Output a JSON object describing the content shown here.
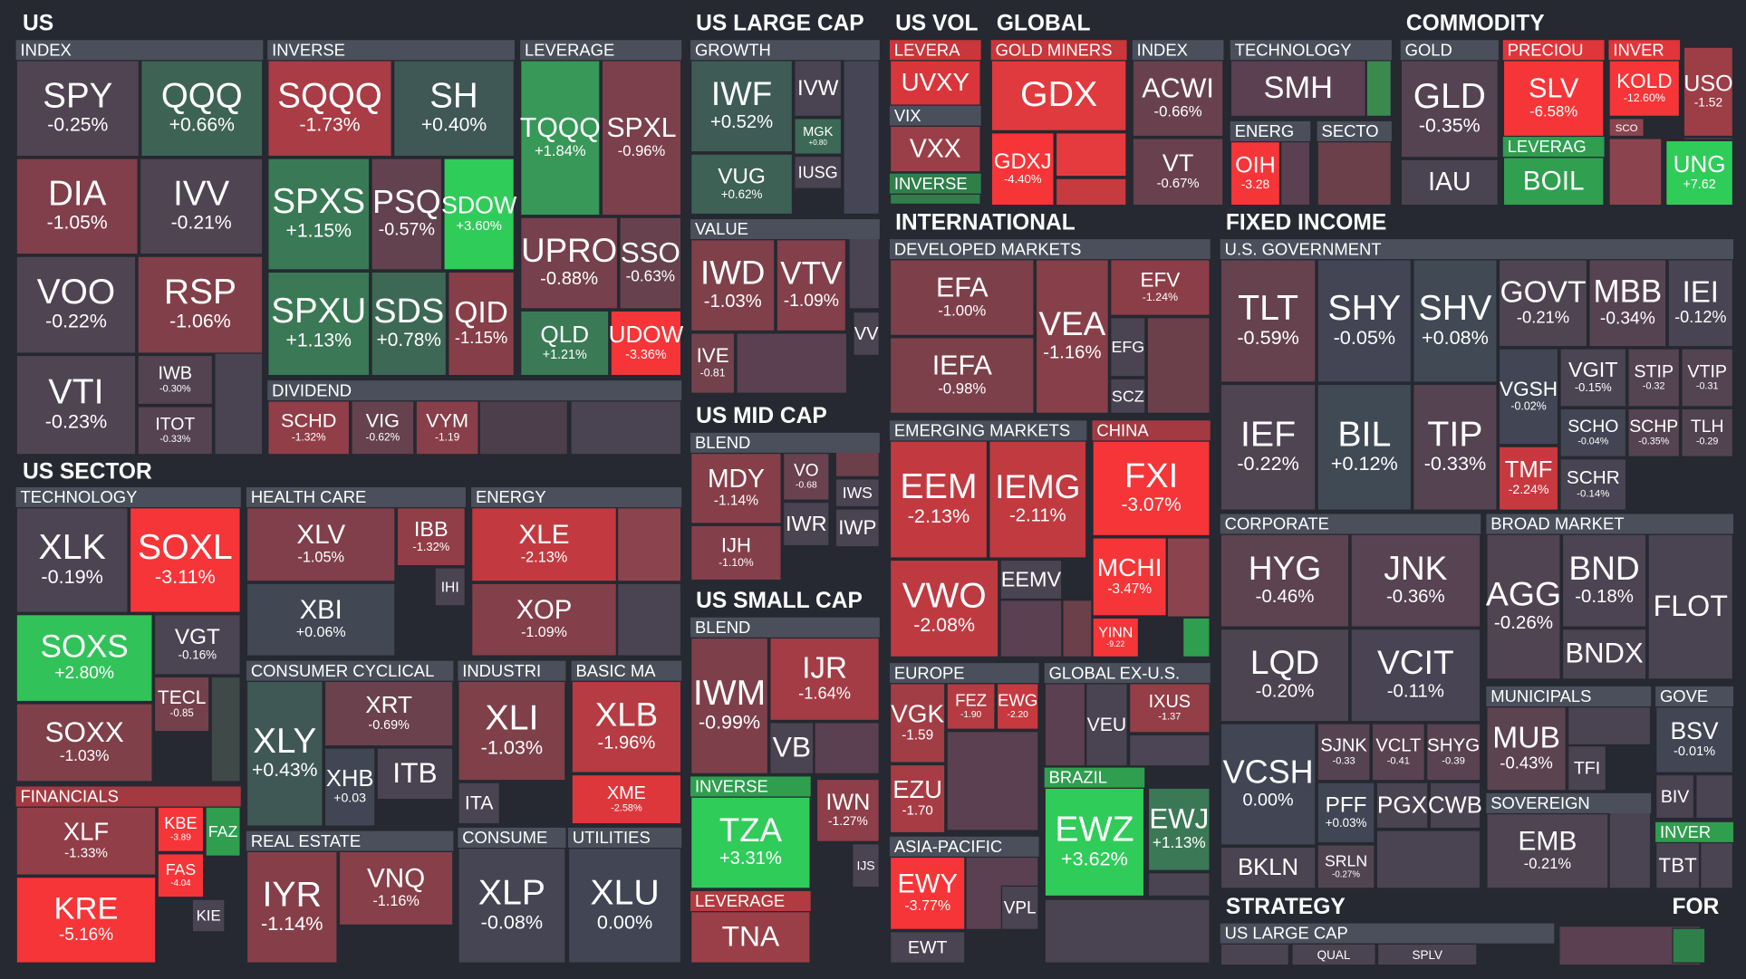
{
  "sections": [
    {
      "title": "US",
      "groups": [
        {
          "label": "INDEX",
          "tiles": [
            {
              "ticker": "SPY",
              "change": "-0.25%"
            },
            {
              "ticker": "QQQ",
              "change": "+0.66%"
            },
            {
              "ticker": "DIA",
              "change": "-1.05%"
            },
            {
              "ticker": "IVV",
              "change": "-0.21%"
            },
            {
              "ticker": "VOO",
              "change": "-0.22%"
            },
            {
              "ticker": "RSP",
              "change": "-1.06%"
            },
            {
              "ticker": "VTI",
              "change": "-0.23%"
            },
            {
              "ticker": "IWB",
              "change": "-0.30%"
            },
            {
              "ticker": "ITOT",
              "change": "-0.33%"
            }
          ]
        },
        {
          "label": "INVERSE",
          "tiles": [
            {
              "ticker": "SQQQ",
              "change": "-1.73%"
            },
            {
              "ticker": "SH",
              "change": "+0.40%"
            },
            {
              "ticker": "SPXS",
              "change": "+1.15%"
            },
            {
              "ticker": "PSQ",
              "change": "-0.57%"
            },
            {
              "ticker": "SDOW",
              "change": "+3.60%"
            },
            {
              "ticker": "SPXU",
              "change": "+1.13%"
            },
            {
              "ticker": "SDS",
              "change": "+0.78%"
            },
            {
              "ticker": "QID",
              "change": "-1.15%"
            }
          ]
        },
        {
          "label": "LEVERAGE",
          "tiles": [
            {
              "ticker": "TQQQ",
              "change": "+1.84%"
            },
            {
              "ticker": "SPXL",
              "change": "-0.96%"
            },
            {
              "ticker": "UPRO",
              "change": "-0.88%"
            },
            {
              "ticker": "SSO",
              "change": "-0.63%"
            },
            {
              "ticker": "QLD",
              "change": "+1.21%"
            },
            {
              "ticker": "UDOW",
              "change": "-3.36%"
            }
          ]
        },
        {
          "label": "DIVIDEND",
          "tiles": [
            {
              "ticker": "SCHD",
              "change": "-1.32%"
            },
            {
              "ticker": "VIG",
              "change": "-0.62%"
            },
            {
              "ticker": "VYM",
              "change": "-1.19"
            }
          ]
        }
      ]
    },
    {
      "title": "US SECTOR",
      "groups": [
        {
          "label": "TECHNOLOGY",
          "tiles": [
            {
              "ticker": "XLK",
              "change": "-0.19%"
            },
            {
              "ticker": "SOXL",
              "change": "-3.11%"
            },
            {
              "ticker": "SOXS",
              "change": "+2.80%"
            },
            {
              "ticker": "VGT",
              "change": "-0.16%"
            },
            {
              "ticker": "SOXX",
              "change": "-1.03%"
            },
            {
              "ticker": "TECL",
              "change": "-0.85"
            }
          ]
        },
        {
          "label": "FINANCIALS",
          "tiles": [
            {
              "ticker": "XLF",
              "change": "-1.33%"
            },
            {
              "ticker": "KBE",
              "change": "-3.89"
            },
            {
              "ticker": "FAZ"
            },
            {
              "ticker": "FAS",
              "change": "-4.04"
            },
            {
              "ticker": "KIE"
            },
            {
              "ticker": "KRE",
              "change": "-5.16%"
            }
          ]
        },
        {
          "label": "HEALTH CARE",
          "tiles": [
            {
              "ticker": "XLV",
              "change": "-1.05%"
            },
            {
              "ticker": "IBB",
              "change": "-1.32%"
            },
            {
              "ticker": "IHI"
            },
            {
              "ticker": "XBI",
              "change": "+0.06%"
            }
          ]
        },
        {
          "label": "ENERGY",
          "tiles": [
            {
              "ticker": "XLE",
              "change": "-2.13%"
            },
            {
              "ticker": "XOP",
              "change": "-1.09%"
            }
          ]
        },
        {
          "label": "CONSUMER CYCLICAL",
          "tiles": [
            {
              "ticker": "XRT",
              "change": "-0.69%"
            },
            {
              "ticker": "XLY",
              "change": "+0.43%"
            },
            {
              "ticker": "XHB",
              "change": "+0.03"
            },
            {
              "ticker": "ITB"
            }
          ]
        },
        {
          "label": "INDUSTRI",
          "tiles": [
            {
              "ticker": "XLI",
              "change": "-1.03%"
            },
            {
              "ticker": "ITA"
            }
          ]
        },
        {
          "label": "BASIC MA",
          "tiles": [
            {
              "ticker": "XLB",
              "change": "-1.96%"
            },
            {
              "ticker": "XME",
              "change": "-2.58%"
            }
          ]
        },
        {
          "label": "REAL ESTATE",
          "tiles": [
            {
              "ticker": "IYR",
              "change": "-1.14%"
            },
            {
              "ticker": "VNQ",
              "change": "-1.16%"
            }
          ]
        },
        {
          "label": "CONSUME",
          "tiles": [
            {
              "ticker": "XLP",
              "change": "-0.08%"
            }
          ]
        },
        {
          "label": "UTILITIES",
          "tiles": [
            {
              "ticker": "XLU",
              "change": "0.00%"
            }
          ]
        }
      ]
    },
    {
      "title": "US LARGE CAP",
      "groups": [
        {
          "label": "GROWTH",
          "tiles": [
            {
              "ticker": "IWF",
              "change": "+0.52%"
            },
            {
              "ticker": "IVW"
            },
            {
              "ticker": "MGK",
              "change": "+0.80"
            },
            {
              "ticker": "IUSG"
            },
            {
              "ticker": "VUG",
              "change": "+0.62%"
            }
          ]
        },
        {
          "label": "VALUE",
          "tiles": [
            {
              "ticker": "IWD",
              "change": "-1.03%"
            },
            {
              "ticker": "VTV",
              "change": "-1.09%"
            },
            {
              "ticker": "IVE",
              "change": "-0.81"
            },
            {
              "ticker": "VV"
            }
          ]
        }
      ]
    },
    {
      "title": "US MID CAP",
      "groups": [
        {
          "label": "BLEND",
          "tiles": [
            {
              "ticker": "MDY",
              "change": "-1.14%"
            },
            {
              "ticker": "VO",
              "change": "-0.68"
            },
            {
              "ticker": "IWR"
            },
            {
              "ticker": "IWS"
            },
            {
              "ticker": "IWP"
            },
            {
              "ticker": "IJH",
              "change": "-1.10%"
            }
          ]
        }
      ]
    },
    {
      "title": "US SMALL CAP",
      "groups": [
        {
          "label": "BLEND",
          "tiles": [
            {
              "ticker": "IWM",
              "change": "-0.99%"
            },
            {
              "ticker": "IJR",
              "change": "-1.64%"
            },
            {
              "ticker": "VB"
            },
            {
              "ticker": "IWN",
              "change": "-1.27%"
            },
            {
              "ticker": "IJS"
            }
          ]
        },
        {
          "label": "INVERSE",
          "tiles": [
            {
              "ticker": "TZA",
              "change": "+3.31%"
            }
          ]
        },
        {
          "label": "LEVERAGE",
          "tiles": [
            {
              "ticker": "TNA"
            }
          ]
        }
      ]
    },
    {
      "title": "US VOL",
      "groups": [
        {
          "label": "LEVERA",
          "tiles": [
            {
              "ticker": "UVXY"
            }
          ]
        },
        {
          "label": "VIX",
          "tiles": [
            {
              "ticker": "VXX"
            }
          ]
        },
        {
          "label": "INVERSE",
          "tiles": []
        }
      ]
    },
    {
      "title": "GLOBAL",
      "groups": [
        {
          "label": "GOLD MINERS",
          "tiles": [
            {
              "ticker": "GDX"
            },
            {
              "ticker": "GDXJ",
              "change": "-4.40%"
            }
          ]
        },
        {
          "label": "INDEX",
          "tiles": [
            {
              "ticker": "ACWI",
              "change": "-0.66%"
            },
            {
              "ticker": "VT",
              "change": "-0.67%"
            }
          ]
        },
        {
          "label": "TECHNOLOGY",
          "tiles": [
            {
              "ticker": "SMH"
            }
          ]
        },
        {
          "label": "ENERG",
          "tiles": [
            {
              "ticker": "OIH",
              "change": "-3.28"
            }
          ]
        },
        {
          "label": "SECTO",
          "tiles": []
        }
      ]
    },
    {
      "title": "COMMODITY",
      "groups": [
        {
          "label": "GOLD",
          "tiles": [
            {
              "ticker": "GLD",
              "change": "-0.35%"
            },
            {
              "ticker": "IAU"
            }
          ]
        },
        {
          "label": "PRECIOU",
          "tiles": [
            {
              "ticker": "SLV",
              "change": "-6.58%"
            }
          ]
        },
        {
          "label": "INVER",
          "tiles": [
            {
              "ticker": "KOLD",
              "change": "-12.60%"
            },
            {
              "ticker": "SCO"
            },
            {
              "ticker": "USO",
              "change": "-1.52"
            }
          ]
        },
        {
          "label": "LEVERAG",
          "tiles": [
            {
              "ticker": "BOIL"
            },
            {
              "ticker": "UNG",
              "change": "+7.62"
            }
          ]
        }
      ]
    },
    {
      "title": "INTERNATIONAL",
      "groups": [
        {
          "label": "DEVELOPED MARKETS",
          "tiles": [
            {
              "ticker": "EFA",
              "change": "-1.00%"
            },
            {
              "ticker": "IEFA",
              "change": "-0.98%"
            },
            {
              "ticker": "VEA",
              "change": "-1.16%"
            },
            {
              "ticker": "EFV",
              "change": "-1.24%"
            },
            {
              "ticker": "EFG"
            },
            {
              "ticker": "SCZ"
            }
          ]
        },
        {
          "label": "EMERGING MARKETS",
          "tiles": [
            {
              "ticker": "EEM",
              "change": "-2.13%"
            },
            {
              "ticker": "IEMG",
              "change": "-2.11%"
            },
            {
              "ticker": "VWO",
              "change": "-2.08%"
            },
            {
              "ticker": "EEMV"
            }
          ]
        },
        {
          "label": "CHINA",
          "tiles": [
            {
              "ticker": "FXI",
              "change": "-3.07%"
            },
            {
              "ticker": "MCHI",
              "change": "-3.47%"
            },
            {
              "ticker": "YINN",
              "change": "-9.22"
            }
          ]
        },
        {
          "label": "EUROPE",
          "tiles": [
            {
              "ticker": "VGK",
              "change": "-1.59"
            },
            {
              "ticker": "FEZ",
              "change": "-1.90"
            },
            {
              "ticker": "EWG",
              "change": "-2.20"
            },
            {
              "ticker": "EZU",
              "change": "-1.70"
            }
          ]
        },
        {
          "label": "GLOBAL EX-U.S.",
          "tiles": [
            {
              "ticker": "VEU"
            },
            {
              "ticker": "IXUS",
              "change": "-1.37"
            },
            {
              "ticker": "EWJ",
              "change": "+1.13%"
            }
          ]
        },
        {
          "label": "BRAZIL",
          "tiles": [
            {
              "ticker": "EWZ",
              "change": "+3.62%"
            }
          ]
        },
        {
          "label": "ASIA-PACIFIC",
          "tiles": [
            {
              "ticker": "EWY",
              "change": "-3.77%"
            },
            {
              "ticker": "VPL"
            },
            {
              "ticker": "EWT"
            }
          ]
        }
      ]
    },
    {
      "title": "FIXED INCOME",
      "groups": [
        {
          "label": "U.S. GOVERNMENT",
          "tiles": [
            {
              "ticker": "TLT",
              "change": "-0.59%"
            },
            {
              "ticker": "SHY",
              "change": "-0.05%"
            },
            {
              "ticker": "SHV",
              "change": "+0.08%"
            },
            {
              "ticker": "GOVT",
              "change": "-0.21%"
            },
            {
              "ticker": "MBB",
              "change": "-0.34%"
            },
            {
              "ticker": "IEI",
              "change": "-0.12%"
            },
            {
              "ticker": "IEF",
              "change": "-0.22%"
            },
            {
              "ticker": "BIL",
              "change": "+0.12%"
            },
            {
              "ticker": "TIP",
              "change": "-0.33%"
            },
            {
              "ticker": "VGSH",
              "change": "-0.02%"
            },
            {
              "ticker": "VGIT",
              "change": "-0.15%"
            },
            {
              "ticker": "STIP",
              "change": "-0.32"
            },
            {
              "ticker": "VTIP",
              "change": "-0.31"
            },
            {
              "ticker": "SCHO",
              "change": "-0.04%"
            },
            {
              "ticker": "SCHP",
              "change": "-0.35%"
            },
            {
              "ticker": "TLH",
              "change": "-0.29"
            },
            {
              "ticker": "TMF",
              "change": "-2.24%"
            },
            {
              "ticker": "SCHR",
              "change": "-0.14%"
            }
          ]
        },
        {
          "label": "CORPORATE",
          "tiles": [
            {
              "ticker": "HYG",
              "change": "-0.46%"
            },
            {
              "ticker": "JNK",
              "change": "-0.36%"
            },
            {
              "ticker": "LQD",
              "change": "-0.20%"
            },
            {
              "ticker": "VCIT",
              "change": "-0.11%"
            },
            {
              "ticker": "VCSH",
              "change": "0.00%"
            },
            {
              "ticker": "SJNK",
              "change": "-0.33"
            },
            {
              "ticker": "VCLT",
              "change": "-0.41"
            },
            {
              "ticker": "SHYG",
              "change": "-0.39"
            },
            {
              "ticker": "PFF",
              "change": "+0.03%"
            },
            {
              "ticker": "PGX"
            },
            {
              "ticker": "CWB"
            },
            {
              "ticker": "SRLN",
              "change": "-0.27%"
            },
            {
              "ticker": "BKLN"
            }
          ]
        },
        {
          "label": "BROAD MARKET",
          "tiles": [
            {
              "ticker": "AGG",
              "change": "-0.26%"
            },
            {
              "ticker": "BND",
              "change": "-0.18%"
            },
            {
              "ticker": "FLOT"
            },
            {
              "ticker": "BNDX"
            }
          ]
        },
        {
          "label": "MUNICIPALS",
          "tiles": [
            {
              "ticker": "MUB",
              "change": "-0.43%"
            },
            {
              "ticker": "TFI"
            }
          ]
        },
        {
          "label": "GOVE",
          "tiles": [
            {
              "ticker": "BSV",
              "change": "-0.01%"
            },
            {
              "ticker": "BIV"
            }
          ]
        },
        {
          "label": "SOVEREIGN",
          "tiles": [
            {
              "ticker": "EMB",
              "change": "-0.21%"
            }
          ]
        },
        {
          "label": "INVER",
          "tiles": [
            {
              "ticker": "TBT"
            }
          ]
        }
      ]
    },
    {
      "title": "STRATEGY",
      "groups": [
        {
          "label": "US LARGE CAP",
          "tiles": [
            {
              "ticker": "QUAL"
            },
            {
              "ticker": "SPLV"
            }
          ]
        }
      ]
    },
    {
      "title": "FOR",
      "groups": []
    }
  ]
}
